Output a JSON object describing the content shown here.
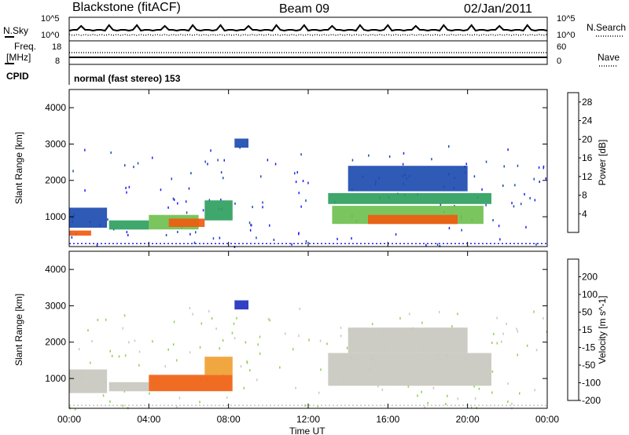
{
  "header": {
    "station": "Blackstone (fitACF)",
    "beam": "Beam 09",
    "date": "02/Jan/2011"
  },
  "status": {
    "nsky_label": "N.Sky",
    "nsearch_label": "N.Search",
    "freq_label": "Freq.",
    "freq_unit": "[MHz]",
    "nave_label": "Nave",
    "cpid_label": "CPID",
    "cpid_value": "normal (fast stereo) 153",
    "noise_ticks": [
      "10^5",
      "10^0"
    ],
    "noise_right_ticks": [
      "10^5",
      "10^0"
    ],
    "freq_ticks": [
      "18",
      "8"
    ],
    "nave_ticks": [
      "60",
      "0"
    ]
  },
  "chart_data": [
    {
      "type": "heatmap",
      "title": "",
      "xlabel": "Time UT",
      "ylabel": "Slant Range [km]",
      "xticks": [
        "00:00",
        "04:00",
        "08:00",
        "12:00",
        "16:00",
        "20:00",
        "00:00"
      ],
      "xlim_hours": [
        0,
        24
      ],
      "yticks": [
        1000,
        2000,
        3000,
        4000
      ],
      "ylim": [
        180,
        4500
      ],
      "colorbar_label": "Power [dB]",
      "colorbar_ticks": [
        4,
        8,
        12,
        16,
        20,
        24,
        28
      ],
      "colorbar_range": [
        0,
        30
      ],
      "colorbar_colors": [
        "#1d1dff",
        "#1d4cb0",
        "#2f7a70",
        "#2fa060",
        "#70c050",
        "#f0c020",
        "#f79020",
        "#f05a10",
        "#e81010"
      ],
      "regions": [
        {
          "t0": 0.0,
          "t1": 1.9,
          "r0": 700,
          "r1": 1250,
          "power": 6
        },
        {
          "t0": 0.0,
          "t1": 1.1,
          "r0": 480,
          "r1": 620,
          "power": 24
        },
        {
          "t0": 2.0,
          "t1": 4.0,
          "r0": 650,
          "r1": 900,
          "power": 10
        },
        {
          "t0": 4.0,
          "t1": 6.5,
          "r0": 650,
          "r1": 1050,
          "power": 14
        },
        {
          "t0": 5.0,
          "t1": 6.8,
          "r0": 720,
          "r1": 950,
          "power": 25
        },
        {
          "t0": 6.8,
          "t1": 8.2,
          "r0": 900,
          "r1": 1450,
          "power": 10
        },
        {
          "t0": 8.3,
          "t1": 9.0,
          "r0": 2900,
          "r1": 3150,
          "power": 5
        },
        {
          "t0": 13.0,
          "t1": 21.2,
          "r0": 1350,
          "r1": 1650,
          "power": 10
        },
        {
          "t0": 13.2,
          "t1": 20.8,
          "r0": 800,
          "r1": 1300,
          "power": 15
        },
        {
          "t0": 15.0,
          "t1": 19.5,
          "r0": 800,
          "r1": 1050,
          "power": 26
        },
        {
          "t0": 14.0,
          "t1": 20.0,
          "r0": 1700,
          "r1": 2400,
          "power": 5
        }
      ]
    },
    {
      "type": "heatmap",
      "title": "",
      "xlabel": "Time UT",
      "ylabel": "Slant Range [km]",
      "xticks": [
        "00:00",
        "04:00",
        "08:00",
        "12:00",
        "16:00",
        "20:00",
        "00:00"
      ],
      "xlim_hours": [
        0,
        24
      ],
      "yticks": [
        1000,
        2000,
        3000,
        4000
      ],
      "ylim": [
        180,
        4500
      ],
      "colorbar_label": "Velocity [m s^-1]",
      "colorbar_ticks": [
        200,
        100,
        50,
        15,
        -15,
        -50,
        -100,
        -200
      ],
      "colorbar_colors": [
        "#2030c0",
        "#206090",
        "#30a040",
        "#90d050",
        "#c8c8c0",
        "#f0a030",
        "#f06010",
        "#e81010",
        "#ff0000"
      ],
      "regions": [
        {
          "t0": 0.0,
          "t1": 1.9,
          "r0": 600,
          "r1": 1250,
          "velocity": 0
        },
        {
          "t0": 2.0,
          "t1": 4.0,
          "r0": 650,
          "r1": 900,
          "velocity": 10
        },
        {
          "t0": 4.0,
          "t1": 8.2,
          "r0": 650,
          "r1": 1100,
          "velocity": -60
        },
        {
          "t0": 6.8,
          "t1": 8.2,
          "r0": 1100,
          "r1": 1600,
          "velocity": -40
        },
        {
          "t0": 8.3,
          "t1": 9.0,
          "r0": 2900,
          "r1": 3150,
          "velocity": 200
        },
        {
          "t0": 13.0,
          "t1": 21.2,
          "r0": 800,
          "r1": 1700,
          "velocity": 0
        },
        {
          "t0": 14.0,
          "t1": 20.0,
          "r0": 1700,
          "r1": 2400,
          "velocity": 0
        }
      ]
    }
  ]
}
